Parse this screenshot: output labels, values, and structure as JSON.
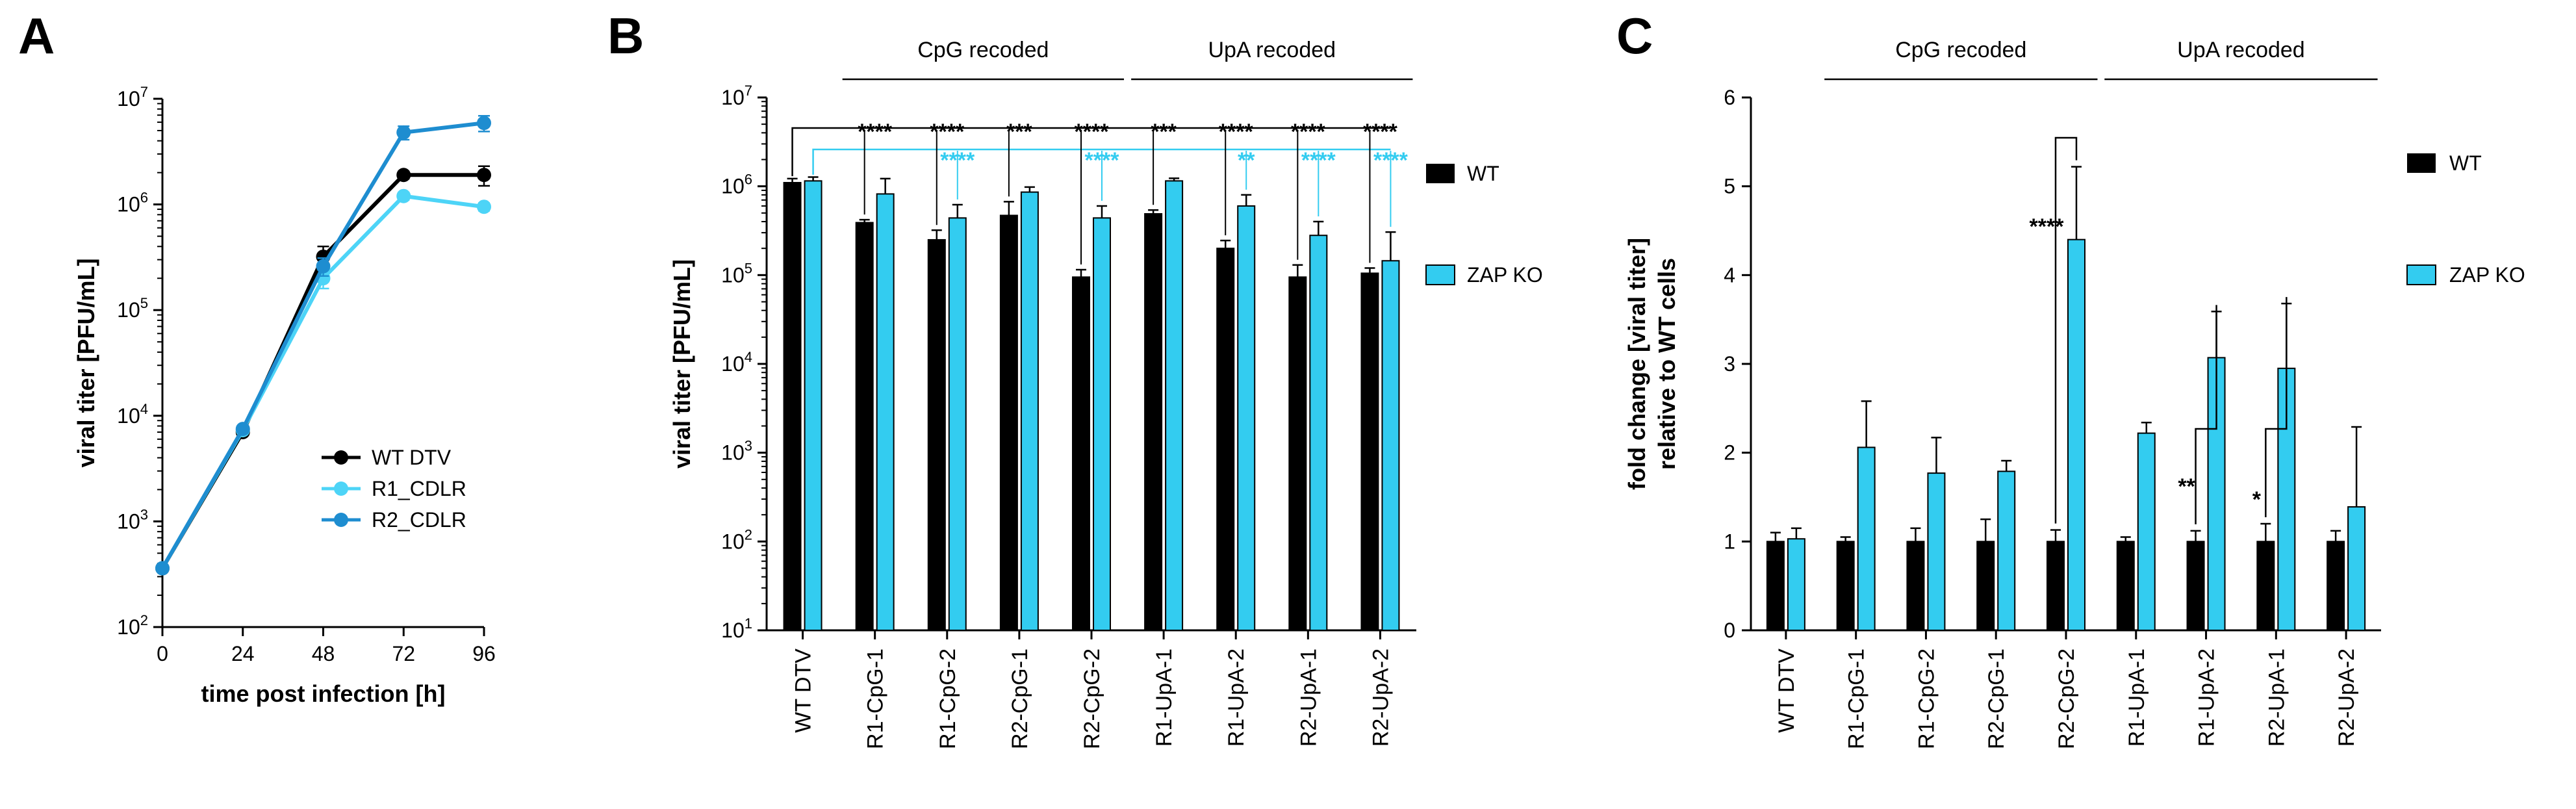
{
  "colors": {
    "wt": "#000000",
    "zap": "#33ccf0",
    "r1": "#4dd4f7",
    "r2": "#1e8dd0",
    "axis": "#000000"
  },
  "chart_data": [
    {
      "panel": "A",
      "type": "line",
      "xlabel": "time post infection [h]",
      "ylabel": "viral titer [PFU/mL]",
      "yscale": "log",
      "ylim": [
        100,
        10000000
      ],
      "y_ticks": [
        {
          "base": "10",
          "exp": "2"
        },
        {
          "base": "10",
          "exp": "3"
        },
        {
          "base": "10",
          "exp": "4"
        },
        {
          "base": "10",
          "exp": "5"
        },
        {
          "base": "10",
          "exp": "6"
        },
        {
          "base": "10",
          "exp": "7"
        }
      ],
      "x": [
        0,
        24,
        48,
        72,
        96
      ],
      "x_ticks": [
        "0",
        "24",
        "48",
        "72",
        "96"
      ],
      "series": [
        {
          "name": "WT DTV",
          "color": "#000000",
          "values": [
            360,
            7000,
            320000,
            1900000,
            1900000
          ],
          "err": [
            0,
            0,
            80000,
            150000,
            400000
          ]
        },
        {
          "name": "R1_CDLR",
          "color": "#4dd4f7",
          "values": [
            360,
            7300,
            200000,
            1200000,
            950000
          ],
          "err": [
            0,
            0,
            40000,
            100000,
            80000
          ]
        },
        {
          "name": "R2_CDLR",
          "color": "#1e8dd0",
          "values": [
            360,
            7500,
            260000,
            4800000,
            5900000
          ],
          "err": [
            0,
            0,
            50000,
            700000,
            1000000
          ]
        }
      ],
      "legend": [
        "WT DTV",
        "R1_CDLR",
        "R2_CDLR"
      ]
    },
    {
      "panel": "B",
      "type": "bar",
      "xlabel": "",
      "ylabel": "viral titer [PFU/mL]",
      "yscale": "log",
      "ylim": [
        10,
        10000000
      ],
      "y_ticks": [
        {
          "base": "10",
          "exp": "1"
        },
        {
          "base": "10",
          "exp": "2"
        },
        {
          "base": "10",
          "exp": "3"
        },
        {
          "base": "10",
          "exp": "4"
        },
        {
          "base": "10",
          "exp": "5"
        },
        {
          "base": "10",
          "exp": "6"
        },
        {
          "base": "10",
          "exp": "7"
        }
      ],
      "categories": [
        "WT DTV",
        "R1-CpG-1",
        "R1-CpG-2",
        "R2-CpG-1",
        "R2-CpG-2",
        "R1-UpA-1",
        "R1-UpA-2",
        "R2-UpA-1",
        "R2-UpA-2"
      ],
      "series": [
        {
          "name": "WT",
          "color": "#000000",
          "values": [
            1100000,
            390000,
            250000,
            470000,
            95000,
            490000,
            200000,
            95000,
            105000
          ],
          "err": [
            120000,
            30000,
            70000,
            200000,
            20000,
            50000,
            45000,
            35000,
            15000
          ]
        },
        {
          "name": "ZAP KO",
          "color": "#33ccf0",
          "values": [
            1150000,
            820000,
            440000,
            860000,
            440000,
            1150000,
            600000,
            280000,
            145000
          ],
          "err": [
            120000,
            400000,
            180000,
            120000,
            160000,
            80000,
            200000,
            120000,
            160000
          ]
        }
      ],
      "group_labels": [
        "CpG recoded",
        "UpA recoded"
      ],
      "sig_black": [
        "****",
        "****",
        "***",
        "****",
        "***",
        "****",
        "****",
        "****"
      ],
      "sig_cyan": [
        "****",
        "****",
        "**",
        "****",
        "****"
      ],
      "legend": [
        "WT",
        "ZAP KO"
      ]
    },
    {
      "panel": "C",
      "type": "bar",
      "xlabel": "",
      "ylabel": "fold change [viral titer] relative to WT cells",
      "ylabel_lines": [
        "fold change [viral titer]",
        "relative to WT cells"
      ],
      "ylim": [
        0,
        6
      ],
      "y_ticks": [
        "0",
        "1",
        "2",
        "3",
        "4",
        "5",
        "6"
      ],
      "categories": [
        "WT DTV",
        "R1-CpG-1",
        "R1-CpG-2",
        "R2-CpG-1",
        "R2-CpG-2",
        "R1-UpA-1",
        "R1-UpA-2",
        "R2-UpA-1",
        "R2-UpA-2"
      ],
      "series": [
        {
          "name": "WT",
          "color": "#000000",
          "values": [
            1,
            1,
            1,
            1,
            1,
            1,
            1,
            1,
            1
          ],
          "err": [
            0.1,
            0.05,
            0.15,
            0.25,
            0.13,
            0.05,
            0.12,
            0.2,
            0.12
          ]
        },
        {
          "name": "ZAP KO",
          "color": "#33ccf0",
          "values": [
            1.03,
            2.06,
            1.77,
            1.79,
            4.4,
            2.22,
            3.07,
            2.95,
            1.39
          ],
          "err": [
            0.12,
            0.52,
            0.4,
            0.12,
            0.82,
            0.12,
            0.52,
            0.73,
            0.9
          ]
        }
      ],
      "group_labels": [
        "CpG recoded",
        "UpA recoded"
      ],
      "significance": [
        "****",
        "**",
        "*"
      ],
      "legend": [
        "WT",
        "ZAP KO"
      ]
    }
  ]
}
